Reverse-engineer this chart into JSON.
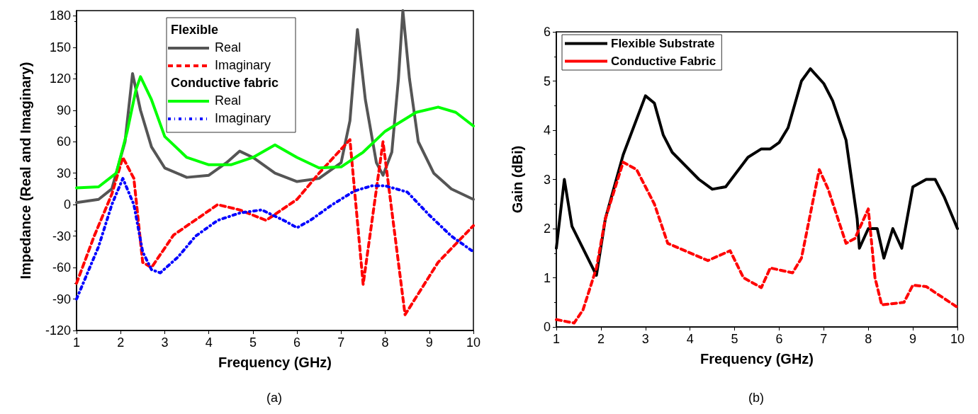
{
  "chart_data": [
    {
      "type": "line",
      "xlabel": "Frequency (GHz)",
      "ylabel": "Impedance (Real and Imaginary)",
      "xlim": [
        1,
        10
      ],
      "xticks": [
        1,
        2,
        3,
        4,
        5,
        6,
        7,
        8,
        9,
        10
      ],
      "ylim": [
        -120,
        185
      ],
      "yticks": [
        -120,
        -90,
        -60,
        -30,
        0,
        30,
        60,
        90,
        120,
        150,
        180
      ],
      "grid": false,
      "legend": "top",
      "marker": "none",
      "annotations": [
        "Flexible",
        "Conductive fabric",
        "(a)"
      ],
      "series": [
        {
          "name": "Real",
          "color": "#555555",
          "line_style": "solid",
          "x": [
            1,
            1.5,
            1.8,
            2.1,
            2.27,
            2.45,
            2.7,
            3.0,
            3.5,
            4.0,
            4.4,
            4.7,
            5.0,
            5.5,
            6.0,
            6.5,
            7.0,
            7.2,
            7.37,
            7.55,
            7.8,
            7.95,
            8.15,
            8.3,
            8.4,
            8.55,
            8.75,
            9.1,
            9.5,
            10
          ],
          "values": [
            2,
            5,
            15,
            60,
            125,
            90,
            55,
            35,
            26,
            28,
            40,
            51,
            45,
            30,
            22,
            25,
            40,
            80,
            167,
            100,
            40,
            28,
            50,
            120,
            185,
            120,
            60,
            30,
            15,
            5
          ]
        },
        {
          "name": "Imaginary",
          "color": "#ff0000",
          "line_style": "dashed",
          "x": [
            1,
            1.4,
            1.8,
            2.05,
            2.3,
            2.5,
            2.7,
            3.2,
            4.2,
            4.7,
            5.3,
            6.0,
            6.5,
            7.2,
            7.5,
            7.95,
            8.45,
            9.2,
            10
          ],
          "values": [
            -75,
            -30,
            10,
            45,
            25,
            -55,
            -60,
            -29,
            0,
            -5,
            -15,
            5,
            30,
            62,
            -76,
            60,
            -105,
            -55,
            -20
          ]
        },
        {
          "name": "Real",
          "color": "#00ff00",
          "line_style": "solid",
          "x": [
            1,
            1.5,
            1.9,
            2.15,
            2.35,
            2.45,
            2.7,
            3.0,
            3.5,
            4.0,
            4.5,
            5.0,
            5.5,
            6.0,
            6.5,
            7.0,
            7.5,
            8.0,
            8.7,
            9.2,
            9.6,
            10
          ],
          "values": [
            16,
            17,
            30,
            70,
            110,
            122,
            100,
            65,
            45,
            38,
            38,
            45,
            57,
            45,
            35,
            36,
            50,
            70,
            88,
            93,
            88,
            75
          ]
        },
        {
          "name": "Imaginary",
          "color": "#0000ff",
          "line_style": "dotted",
          "x": [
            1,
            1.5,
            1.8,
            2.05,
            2.3,
            2.5,
            2.7,
            2.9,
            3.3,
            3.7,
            4.2,
            4.7,
            5.2,
            5.7,
            6.0,
            6.3,
            6.8,
            7.3,
            7.7,
            8.0,
            8.5,
            9.0,
            9.5,
            10
          ],
          "values": [
            -90,
            -40,
            0,
            25,
            0,
            -45,
            -62,
            -65,
            -50,
            -30,
            -15,
            -8,
            -5,
            -15,
            -22,
            -15,
            0,
            13,
            18,
            18,
            12,
            -10,
            -30,
            -45
          ]
        }
      ]
    },
    {
      "type": "line",
      "xlabel": "Frequency (GHz)",
      "ylabel": "Gain (dBi)",
      "xlim": [
        1,
        10
      ],
      "xticks": [
        1,
        2,
        3,
        4,
        5,
        6,
        7,
        8,
        9,
        10
      ],
      "ylim": [
        0,
        6
      ],
      "yticks": [
        0,
        1,
        2,
        3,
        4,
        5,
        6
      ],
      "grid": false,
      "legend": "top left",
      "marker": "none",
      "annotations": [
        "(b)"
      ],
      "series": [
        {
          "name": "Flexible Substrate",
          "color": "#000000",
          "line_style": "solid",
          "x": [
            1,
            1.18,
            1.35,
            1.9,
            2.1,
            2.5,
            3.0,
            3.2,
            3.4,
            3.6,
            4.2,
            4.5,
            4.8,
            5.3,
            5.6,
            5.8,
            6.0,
            6.2,
            6.5,
            6.7,
            7.0,
            7.2,
            7.5,
            7.75,
            7.8,
            8.0,
            8.2,
            8.35,
            8.55,
            8.75,
            9.0,
            9.3,
            9.5,
            9.7,
            10
          ],
          "values": [
            1.6,
            3.0,
            2.05,
            1.05,
            2.2,
            3.5,
            4.7,
            4.55,
            3.9,
            3.55,
            3.0,
            2.8,
            2.85,
            3.45,
            3.62,
            3.62,
            3.75,
            4.05,
            5.0,
            5.25,
            4.95,
            4.6,
            3.8,
            2.2,
            1.6,
            2.0,
            2.0,
            1.4,
            2.0,
            1.6,
            2.85,
            3.0,
            3.0,
            2.65,
            2.0
          ]
        },
        {
          "name": "Conductive Fabric",
          "color": "#ff0000",
          "line_style": "dashed",
          "x": [
            1,
            1.4,
            1.6,
            1.9,
            2.1,
            2.5,
            2.8,
            3.2,
            3.5,
            4.4,
            4.9,
            5.2,
            5.6,
            5.8,
            6.3,
            6.5,
            6.9,
            7.1,
            7.5,
            7.7,
            8.0,
            8.15,
            8.3,
            8.8,
            9.0,
            9.3,
            10
          ],
          "values": [
            0.15,
            0.08,
            0.35,
            1.2,
            2.2,
            3.35,
            3.2,
            2.5,
            1.7,
            1.35,
            1.55,
            1.0,
            0.8,
            1.2,
            1.1,
            1.4,
            3.2,
            2.8,
            1.7,
            1.8,
            2.4,
            1.0,
            0.45,
            0.5,
            0.85,
            0.82,
            0.4
          ]
        }
      ]
    }
  ]
}
